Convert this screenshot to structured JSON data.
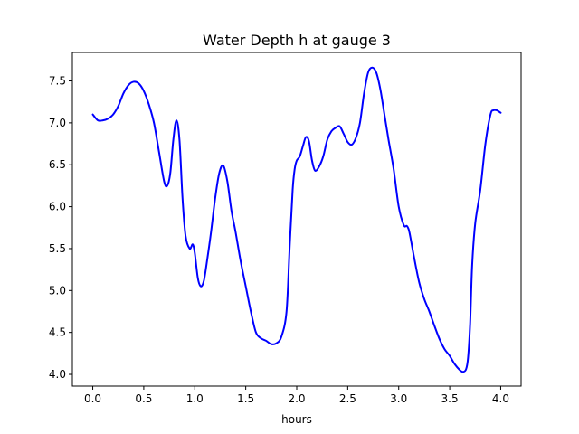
{
  "chart_data": {
    "type": "line",
    "title": "Water Depth h at gauge 3",
    "xlabel": "hours",
    "ylabel": "",
    "xlim": [
      -0.2,
      4.2
    ],
    "ylim": [
      3.86,
      7.84
    ],
    "xticks": [
      0.0,
      0.5,
      1.0,
      1.5,
      2.0,
      2.5,
      3.0,
      3.5,
      4.0
    ],
    "xtick_labels": [
      "0.0",
      "0.5",
      "1.0",
      "1.5",
      "2.0",
      "2.5",
      "3.0",
      "3.5",
      "4.0"
    ],
    "yticks": [
      4.0,
      4.5,
      5.0,
      5.5,
      6.0,
      6.5,
      7.0,
      7.5
    ],
    "ytick_labels": [
      "4.0",
      "4.5",
      "5.0",
      "5.5",
      "6.0",
      "6.5",
      "7.0",
      "7.5"
    ],
    "grid": false,
    "series": [
      {
        "color": "#0000ff",
        "x": [
          0.0,
          0.05,
          0.1,
          0.15,
          0.2,
          0.25,
          0.3,
          0.35,
          0.4,
          0.45,
          0.5,
          0.55,
          0.6,
          0.65,
          0.7,
          0.73,
          0.76,
          0.79,
          0.82,
          0.85,
          0.88,
          0.91,
          0.95,
          0.98,
          1.0,
          1.03,
          1.06,
          1.09,
          1.12,
          1.16,
          1.2,
          1.24,
          1.28,
          1.32,
          1.36,
          1.4,
          1.45,
          1.5,
          1.55,
          1.6,
          1.65,
          1.7,
          1.75,
          1.8,
          1.85,
          1.9,
          1.93,
          1.96,
          1.98,
          2.0,
          2.03,
          2.06,
          2.09,
          2.12,
          2.15,
          2.18,
          2.22,
          2.26,
          2.3,
          2.34,
          2.38,
          2.42,
          2.46,
          2.5,
          2.54,
          2.58,
          2.62,
          2.66,
          2.7,
          2.74,
          2.78,
          2.82,
          2.86,
          2.9,
          2.95,
          3.0,
          3.05,
          3.08,
          3.1,
          3.12,
          3.15,
          3.2,
          3.25,
          3.3,
          3.35,
          3.4,
          3.45,
          3.5,
          3.55,
          3.6,
          3.63,
          3.66,
          3.68,
          3.7,
          3.72,
          3.75,
          3.8,
          3.85,
          3.9,
          3.93,
          3.96,
          4.0
        ],
        "y": [
          7.1,
          7.03,
          7.03,
          7.05,
          7.1,
          7.2,
          7.35,
          7.45,
          7.49,
          7.47,
          7.38,
          7.22,
          7.0,
          6.65,
          6.3,
          6.25,
          6.4,
          6.8,
          7.03,
          6.8,
          6.1,
          5.65,
          5.5,
          5.55,
          5.45,
          5.15,
          5.05,
          5.12,
          5.35,
          5.7,
          6.1,
          6.4,
          6.49,
          6.3,
          5.95,
          5.7,
          5.35,
          5.05,
          4.75,
          4.5,
          4.43,
          4.4,
          4.36,
          4.37,
          4.45,
          4.75,
          5.5,
          6.2,
          6.45,
          6.55,
          6.6,
          6.72,
          6.83,
          6.78,
          6.55,
          6.43,
          6.48,
          6.6,
          6.8,
          6.9,
          6.94,
          6.96,
          6.87,
          6.77,
          6.74,
          6.82,
          7.0,
          7.35,
          7.6,
          7.66,
          7.6,
          7.4,
          7.1,
          6.8,
          6.45,
          6.0,
          5.78,
          5.77,
          5.72,
          5.6,
          5.4,
          5.1,
          4.9,
          4.75,
          4.58,
          4.42,
          4.3,
          4.22,
          4.12,
          4.05,
          4.03,
          4.06,
          4.2,
          4.6,
          5.3,
          5.8,
          6.2,
          6.75,
          7.1,
          7.15,
          7.15,
          7.12
        ]
      }
    ]
  }
}
